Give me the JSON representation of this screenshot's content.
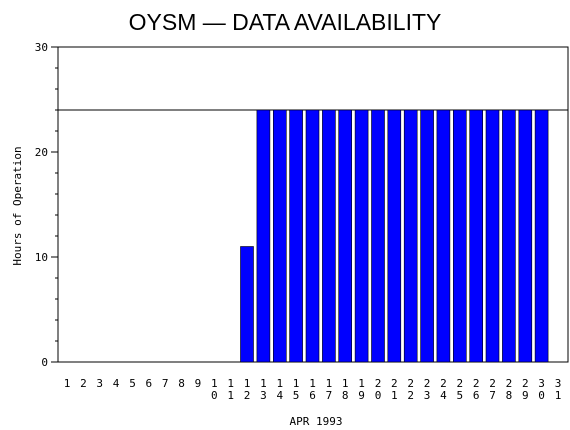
{
  "chart_data": {
    "type": "bar",
    "title": "OYSM — DATA AVAILABILITY",
    "xlabel": "APR 1993",
    "ylabel": "Hours of Operation",
    "ylim": [
      0,
      30
    ],
    "yticks": [
      0,
      10,
      20,
      30
    ],
    "reference_line": 24,
    "bar_color": "#0000ff",
    "categories": [
      "1",
      "2",
      "3",
      "4",
      "5",
      "6",
      "7",
      "8",
      "9",
      "10",
      "11",
      "12",
      "13",
      "14",
      "15",
      "16",
      "17",
      "18",
      "19",
      "20",
      "21",
      "22",
      "23",
      "24",
      "25",
      "26",
      "27",
      "28",
      "29",
      "30",
      "31"
    ],
    "values": [
      0,
      0,
      0,
      0,
      0,
      0,
      0,
      0,
      0,
      0,
      0,
      11,
      24,
      24,
      24,
      24,
      24,
      24,
      24,
      24,
      24,
      24,
      24,
      24,
      24,
      24,
      24,
      24,
      24,
      24,
      0
    ]
  }
}
